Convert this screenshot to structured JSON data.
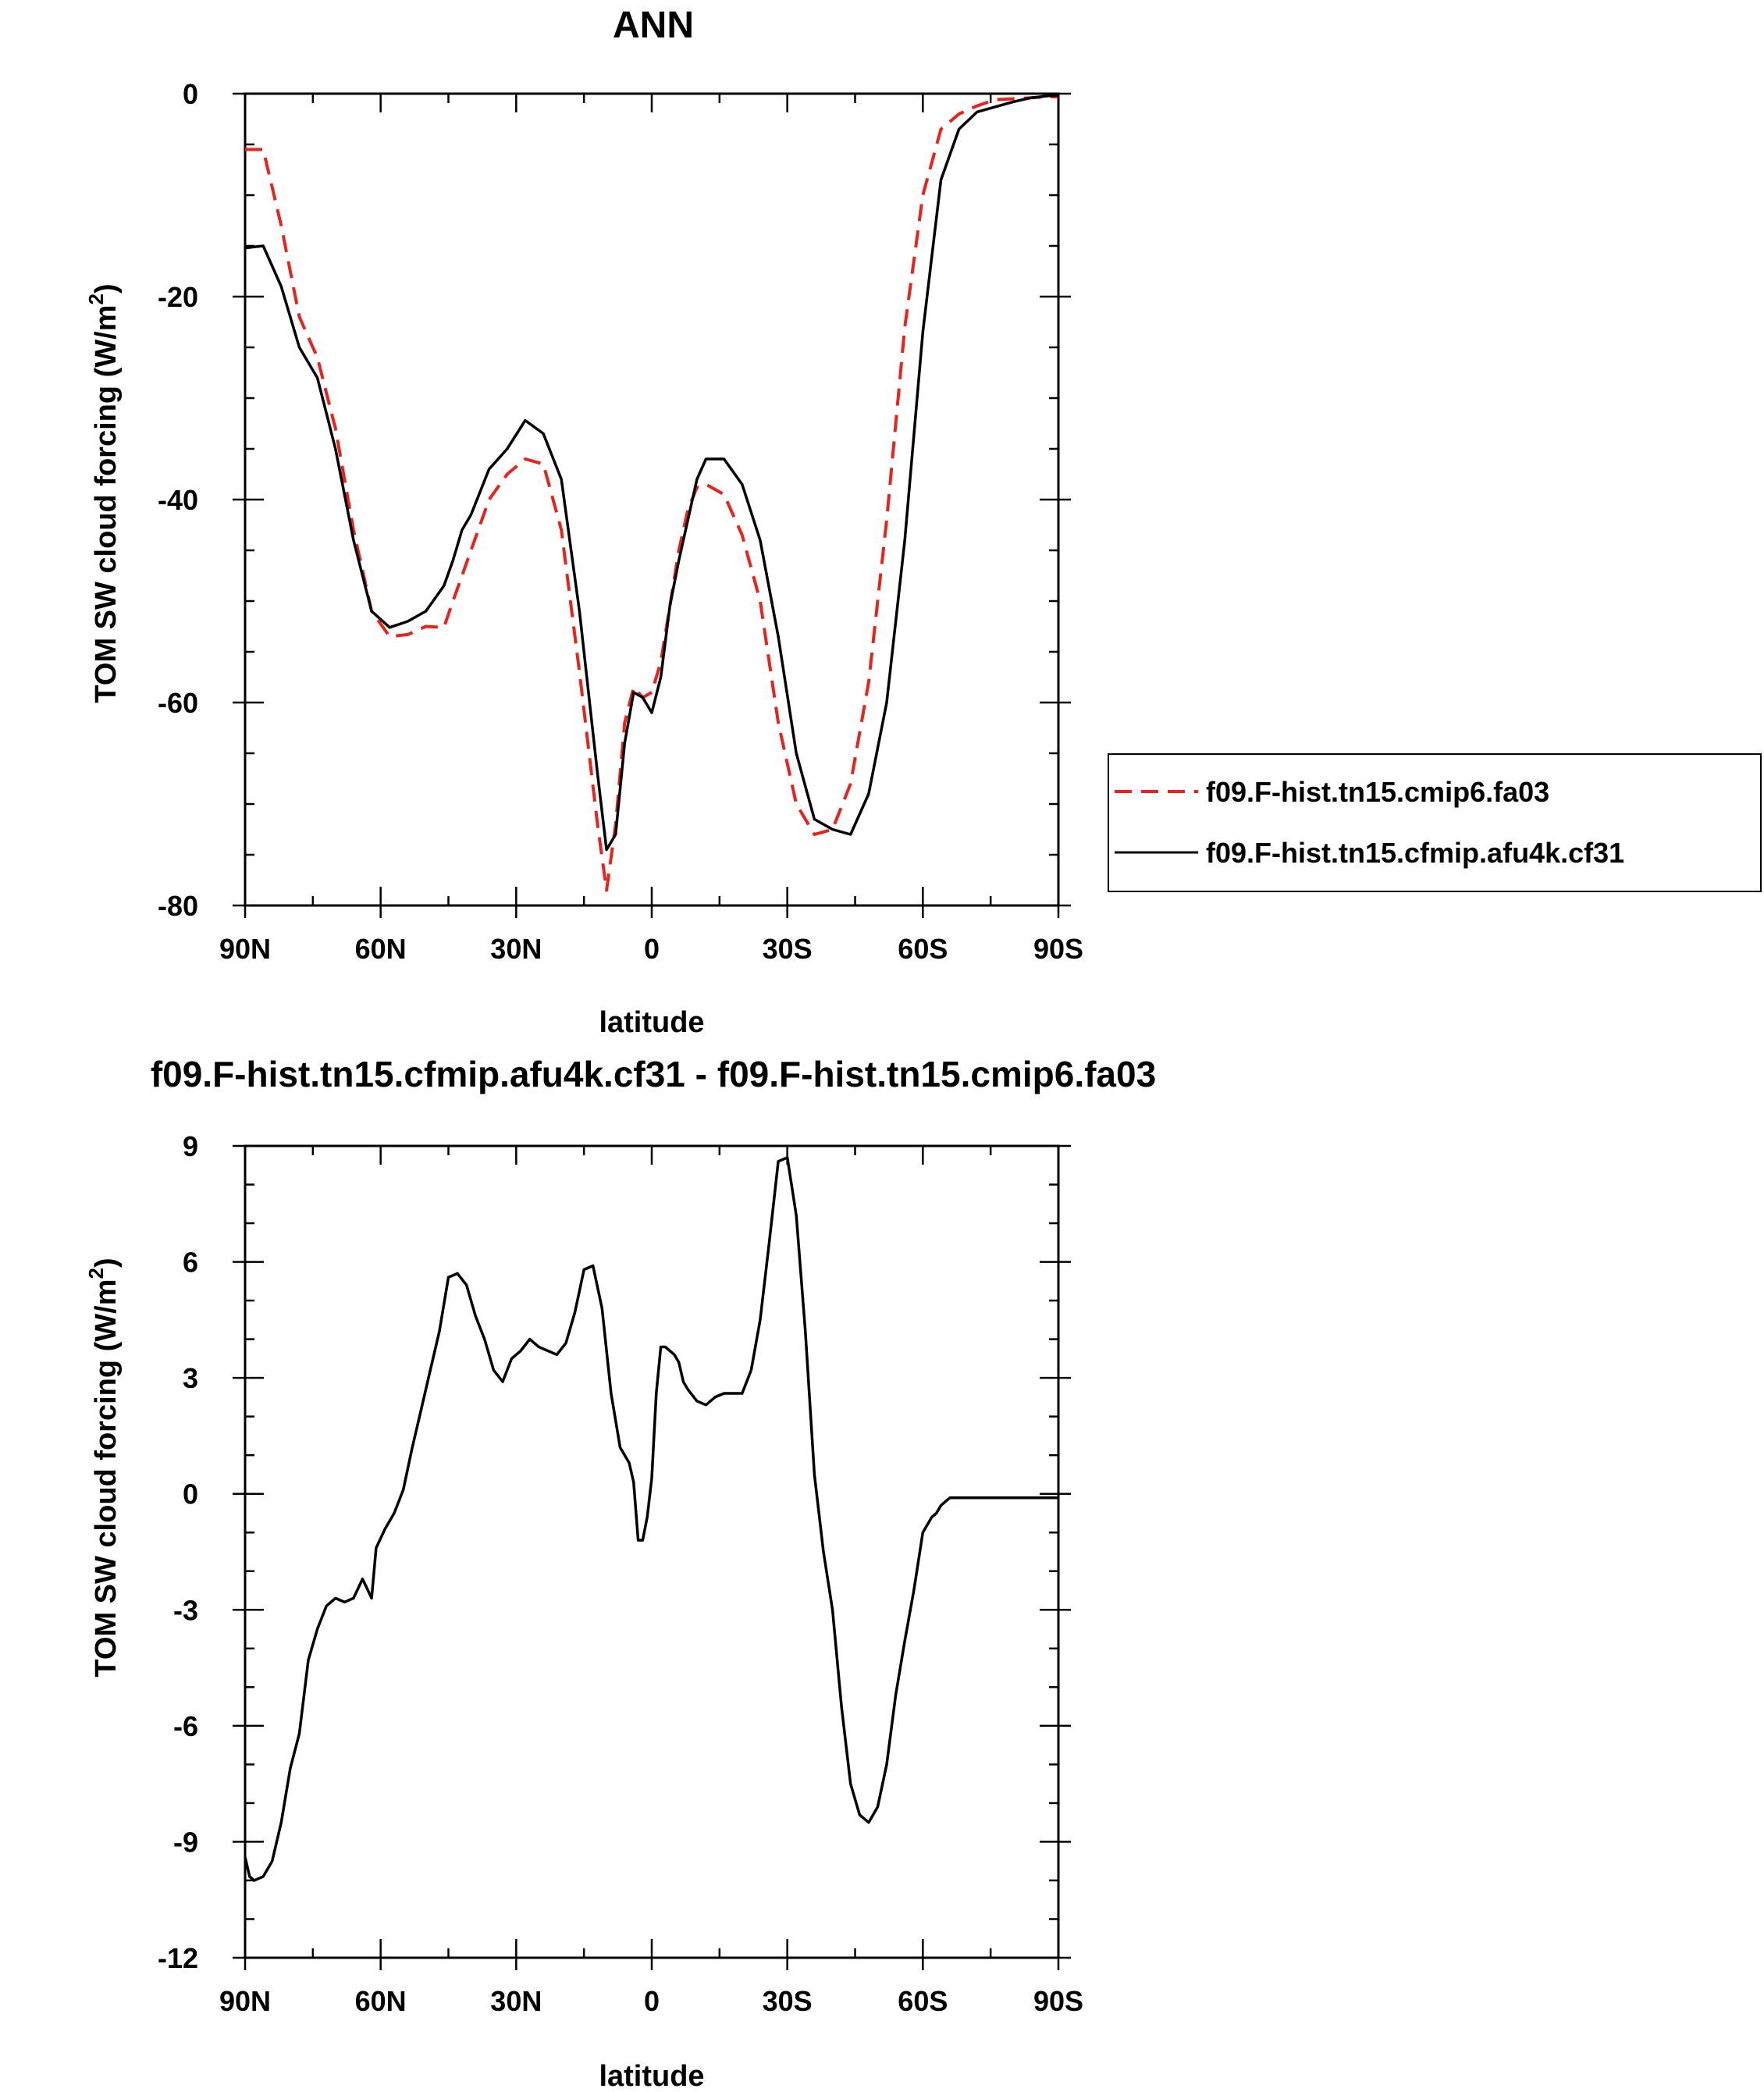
{
  "chart_data": [
    {
      "type": "line",
      "title": "ANN",
      "xlabel": "latitude",
      "ylabel": "TOM SW cloud forcing (W/m",
      "ylabel_sup": "2",
      "ylabel_close": ")",
      "xlim": [
        90,
        -90
      ],
      "ylim": [
        -80,
        0
      ],
      "x_ticks": [
        90,
        60,
        30,
        0,
        -30,
        -60,
        -90
      ],
      "x_tick_labels": [
        "90N",
        "60N",
        "30N",
        "0",
        "30S",
        "60S",
        "90S"
      ],
      "y_ticks": [
        0,
        -20,
        -40,
        -60,
        -80
      ],
      "y_tick_labels": [
        "0",
        "-20",
        "-40",
        "-60",
        "-80"
      ],
      "legend_position": "right",
      "grid": false,
      "x": [
        90,
        86,
        82,
        78,
        74,
        70,
        66,
        62,
        58,
        54,
        50,
        46,
        44,
        42,
        40,
        36,
        32,
        28,
        24,
        20,
        16,
        12,
        10,
        8,
        6,
        4,
        2,
        0,
        -2,
        -4,
        -6,
        -8,
        -10,
        -12,
        -16,
        -20,
        -24,
        -28,
        -32,
        -36,
        -40,
        -44,
        -48,
        -52,
        -56,
        -60,
        -64,
        -68,
        -72,
        -76,
        -80,
        -84,
        -88,
        -90
      ],
      "series": [
        {
          "name": "f09.F-hist.tn15.cmip6.fa03",
          "color": "#e8231c",
          "dash": "dashed",
          "values": [
            -5.5,
            -5.5,
            -13,
            -22,
            -26,
            -33,
            -43,
            -51,
            -53.5,
            -53.3,
            -52.5,
            -52.6,
            -50,
            -47.5,
            -45,
            -40,
            -37.5,
            -36,
            -36.5,
            -43,
            -57,
            -72,
            -78.5,
            -72,
            -62,
            -58.5,
            -59.5,
            -59,
            -56,
            -50.5,
            -45,
            -41,
            -38.8,
            -38.5,
            -39.5,
            -43.5,
            -50,
            -62,
            -70,
            -73,
            -72.5,
            -68,
            -58,
            -42,
            -23,
            -10,
            -3.5,
            -2,
            -1.2,
            -0.6,
            -0.5,
            -0.4,
            -0.3,
            -0.3
          ]
        },
        {
          "name": "f09.F-hist.tn15.cfmip.afu4k.cf31",
          "color": "#000000",
          "dash": "solid",
          "values": [
            -15.2,
            -15,
            -19,
            -25,
            -28,
            -35,
            -44,
            -51,
            -52.6,
            -52,
            -51,
            -48.5,
            -46,
            -43,
            -41.5,
            -37,
            -35,
            -32.2,
            -33.5,
            -38,
            -51,
            -67,
            -74.5,
            -73,
            -64,
            -59,
            -59.5,
            -61,
            -57.5,
            -50.5,
            -46,
            -42,
            -38,
            -36,
            -36,
            -38.5,
            -44,
            -53.5,
            -65,
            -71.5,
            -72.5,
            -73,
            -69,
            -60,
            -44,
            -23.5,
            -8.5,
            -3.5,
            -1.8,
            -1.3,
            -0.8,
            -0.4,
            -0.2,
            -0.2
          ]
        }
      ]
    },
    {
      "type": "line",
      "title": "f09.F-hist.tn15.cfmip.afu4k.cf31 - f09.F-hist.tn15.cmip6.fa03",
      "xlabel": "latitude",
      "ylabel": "TOM SW cloud forcing (W/m",
      "ylabel_sup": "2",
      "ylabel_close": ")",
      "xlim": [
        90,
        -90
      ],
      "ylim": [
        -12,
        9
      ],
      "x_ticks": [
        90,
        60,
        30,
        0,
        -30,
        -60,
        -90
      ],
      "x_tick_labels": [
        "90N",
        "60N",
        "30N",
        "0",
        "30S",
        "60S",
        "90S"
      ],
      "y_ticks": [
        9,
        6,
        3,
        0,
        -3,
        -6,
        -9,
        -12
      ],
      "y_tick_labels": [
        "9",
        "6",
        "3",
        "0",
        "-3",
        "-6",
        "-9",
        "-12"
      ],
      "grid": false,
      "x": [
        90,
        89,
        88,
        86,
        84,
        82,
        80,
        78,
        76,
        74,
        72,
        70,
        68,
        66,
        64,
        62,
        61,
        59,
        57,
        55,
        53,
        51,
        49,
        47,
        45,
        43,
        41,
        39,
        37,
        35,
        33,
        31,
        29,
        27,
        25,
        23,
        21,
        19,
        17,
        15,
        13,
        11,
        9,
        7,
        5,
        4,
        3,
        2,
        1,
        0,
        -1,
        -2,
        -3,
        -4,
        -5,
        -6,
        -7,
        -8,
        -10,
        -12,
        -14,
        -16,
        -18,
        -20,
        -22,
        -24,
        -26,
        -28,
        -30,
        -32,
        -34,
        -36,
        -38,
        -40,
        -42,
        -44,
        -46,
        -48,
        -50,
        -52,
        -54,
        -56,
        -58,
        -60,
        -62,
        -63,
        -64,
        -65,
        -66,
        -67,
        -68,
        -70,
        -72,
        -74,
        -76,
        -78,
        -80,
        -82,
        -84,
        -86,
        -88,
        -90
      ],
      "series": [
        {
          "name": "",
          "color": "#000000",
          "dash": "solid",
          "values": [
            -9.4,
            -9.9,
            -10.0,
            -9.9,
            -9.5,
            -8.5,
            -7.1,
            -6.2,
            -4.3,
            -3.5,
            -2.9,
            -2.7,
            -2.8,
            -2.7,
            -2.2,
            -2.7,
            -1.4,
            -0.9,
            -0.5,
            0.1,
            1.2,
            2.2,
            3.2,
            4.2,
            5.6,
            5.7,
            5.4,
            4.6,
            4.0,
            3.2,
            2.9,
            3.5,
            3.7,
            4.0,
            3.8,
            3.7,
            3.6,
            3.9,
            4.7,
            5.8,
            5.9,
            4.8,
            2.6,
            1.2,
            0.8,
            0.3,
            -1.2,
            -1.2,
            -0.6,
            0.4,
            2.6,
            3.8,
            3.8,
            3.7,
            3.6,
            3.4,
            2.9,
            2.7,
            2.4,
            2.3,
            2.5,
            2.6,
            2.6,
            2.6,
            3.2,
            4.5,
            6.5,
            8.6,
            8.7,
            7.2,
            4.2,
            0.5,
            -1.5,
            -3.0,
            -5.5,
            -7.5,
            -8.3,
            -8.5,
            -8.1,
            -7.0,
            -5.2,
            -3.8,
            -2.5,
            -1.0,
            -0.6,
            -0.5,
            -0.3,
            -0.2,
            -0.1,
            -0.1,
            -0.1,
            -0.1,
            -0.1,
            -0.1,
            -0.1,
            -0.1,
            -0.1,
            -0.1,
            -0.1,
            -0.1,
            -0.1,
            -0.1
          ]
        }
      ]
    }
  ]
}
